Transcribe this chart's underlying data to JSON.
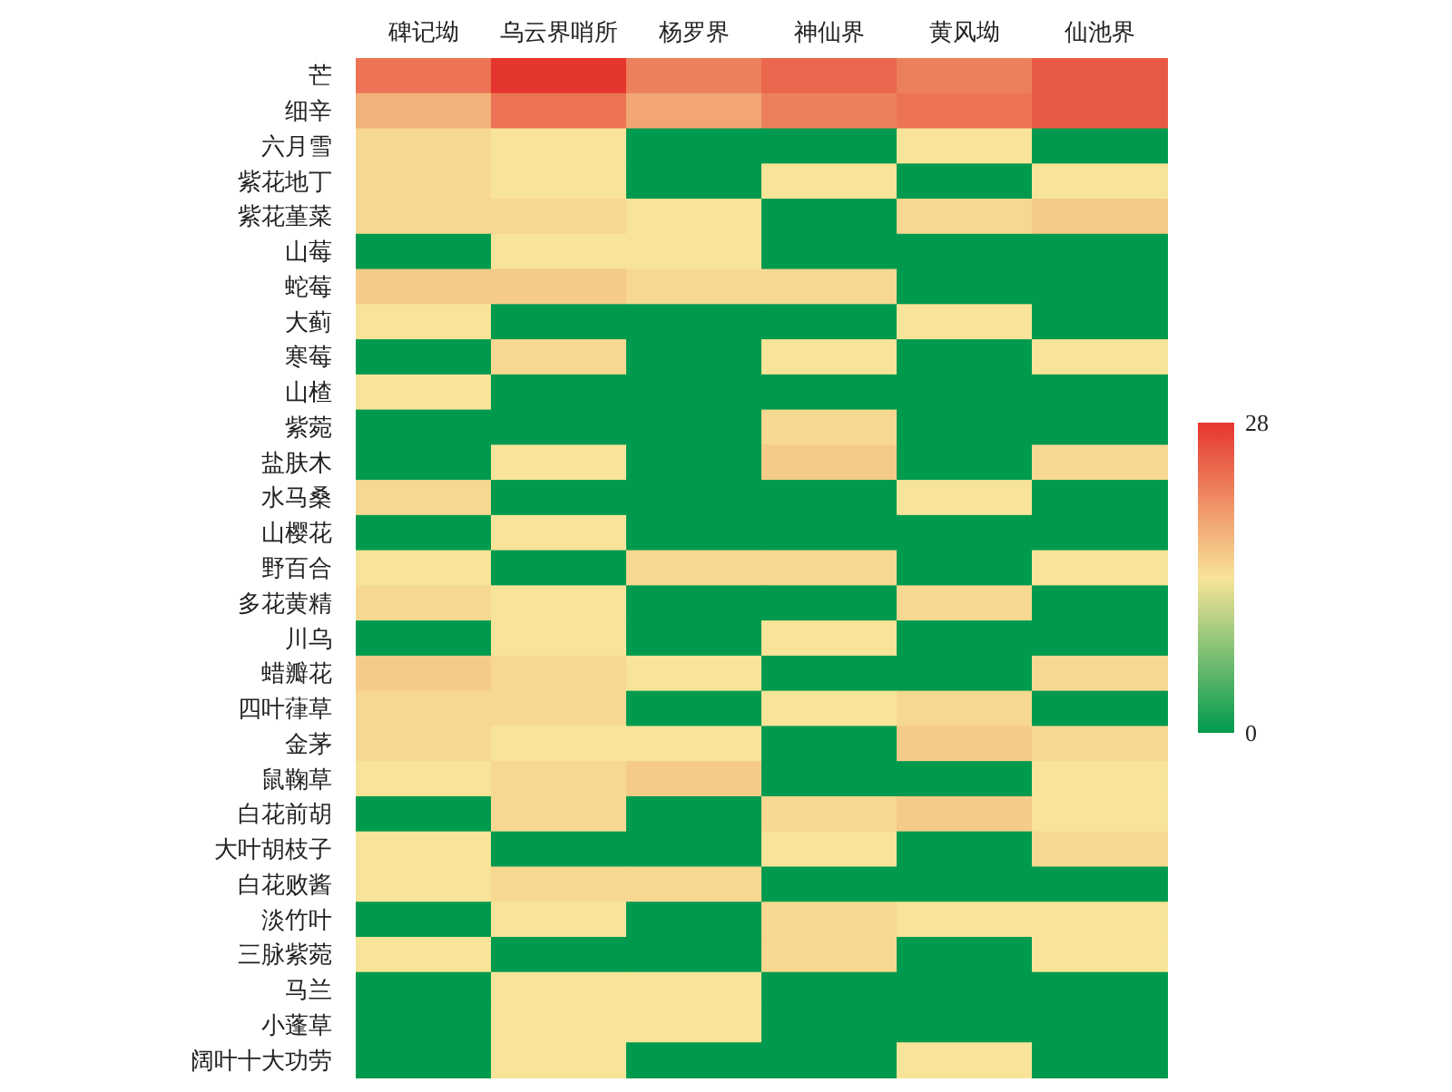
{
  "chart_data": {
    "type": "heatmap",
    "categories": [
      "碑记坳",
      "乌云界哨所",
      "杨罗界",
      "神仙界",
      "黄风坳",
      "仙池界"
    ],
    "y_categories": [
      "芒",
      "细辛",
      "六月雪",
      "紫花地丁",
      "紫花堇菜",
      "山莓",
      "蛇莓",
      "大蓟",
      "寒莓",
      "山楂",
      "紫菀",
      "盐肤木",
      "水马桑",
      "山樱花",
      "野百合",
      "多花黄精",
      "川乌",
      "蜡瓣花",
      "四叶葎草",
      "金茅",
      "鼠鞠草",
      "白花前胡",
      "大叶胡枝子",
      "白花败酱",
      "淡竹叶",
      "三脉紫菀",
      "马兰",
      "小蓬草",
      "阔叶十大功劳"
    ],
    "cells": [
      [
        23,
        28,
        22,
        24,
        22,
        25
      ],
      [
        18,
        23,
        19,
        22,
        23,
        25
      ],
      [
        15,
        14,
        0,
        0,
        14,
        0
      ],
      [
        15,
        14,
        0,
        14,
        0,
        14
      ],
      [
        15,
        15,
        14,
        0,
        15,
        16
      ],
      [
        0,
        14,
        14,
        0,
        0,
        0
      ],
      [
        16,
        16,
        15,
        15,
        0,
        0
      ],
      [
        14,
        0,
        0,
        0,
        14,
        0
      ],
      [
        0,
        15,
        0,
        14,
        0,
        14
      ],
      [
        14,
        0,
        0,
        0,
        0,
        0
      ],
      [
        0,
        0,
        0,
        15,
        0,
        0
      ],
      [
        0,
        14,
        0,
        16,
        0,
        15
      ],
      [
        15,
        0,
        0,
        0,
        14,
        0
      ],
      [
        0,
        14,
        0,
        0,
        0,
        0
      ],
      [
        14,
        0,
        15,
        15,
        0,
        14
      ],
      [
        15,
        14,
        0,
        0,
        15,
        0
      ],
      [
        0,
        14,
        0,
        14,
        0,
        0
      ],
      [
        16,
        15,
        14,
        0,
        0,
        15
      ],
      [
        15,
        15,
        0,
        14,
        15,
        0
      ],
      [
        15,
        14,
        14,
        0,
        16,
        15
      ],
      [
        14,
        15,
        16,
        0,
        0,
        14
      ],
      [
        0,
        15,
        0,
        15,
        16,
        14
      ],
      [
        14,
        0,
        0,
        14,
        0,
        15
      ],
      [
        14,
        15,
        15,
        0,
        0,
        0
      ],
      [
        0,
        14,
        0,
        15,
        14,
        14
      ],
      [
        14,
        0,
        0,
        15,
        0,
        14
      ],
      [
        0,
        14,
        14,
        0,
        0,
        0
      ],
      [
        0,
        14,
        14,
        0,
        0,
        0
      ],
      [
        0,
        14,
        0,
        0,
        14,
        0
      ]
    ],
    "clim": [
      0,
      28
    ],
    "cticks": [
      0,
      28
    ]
  }
}
